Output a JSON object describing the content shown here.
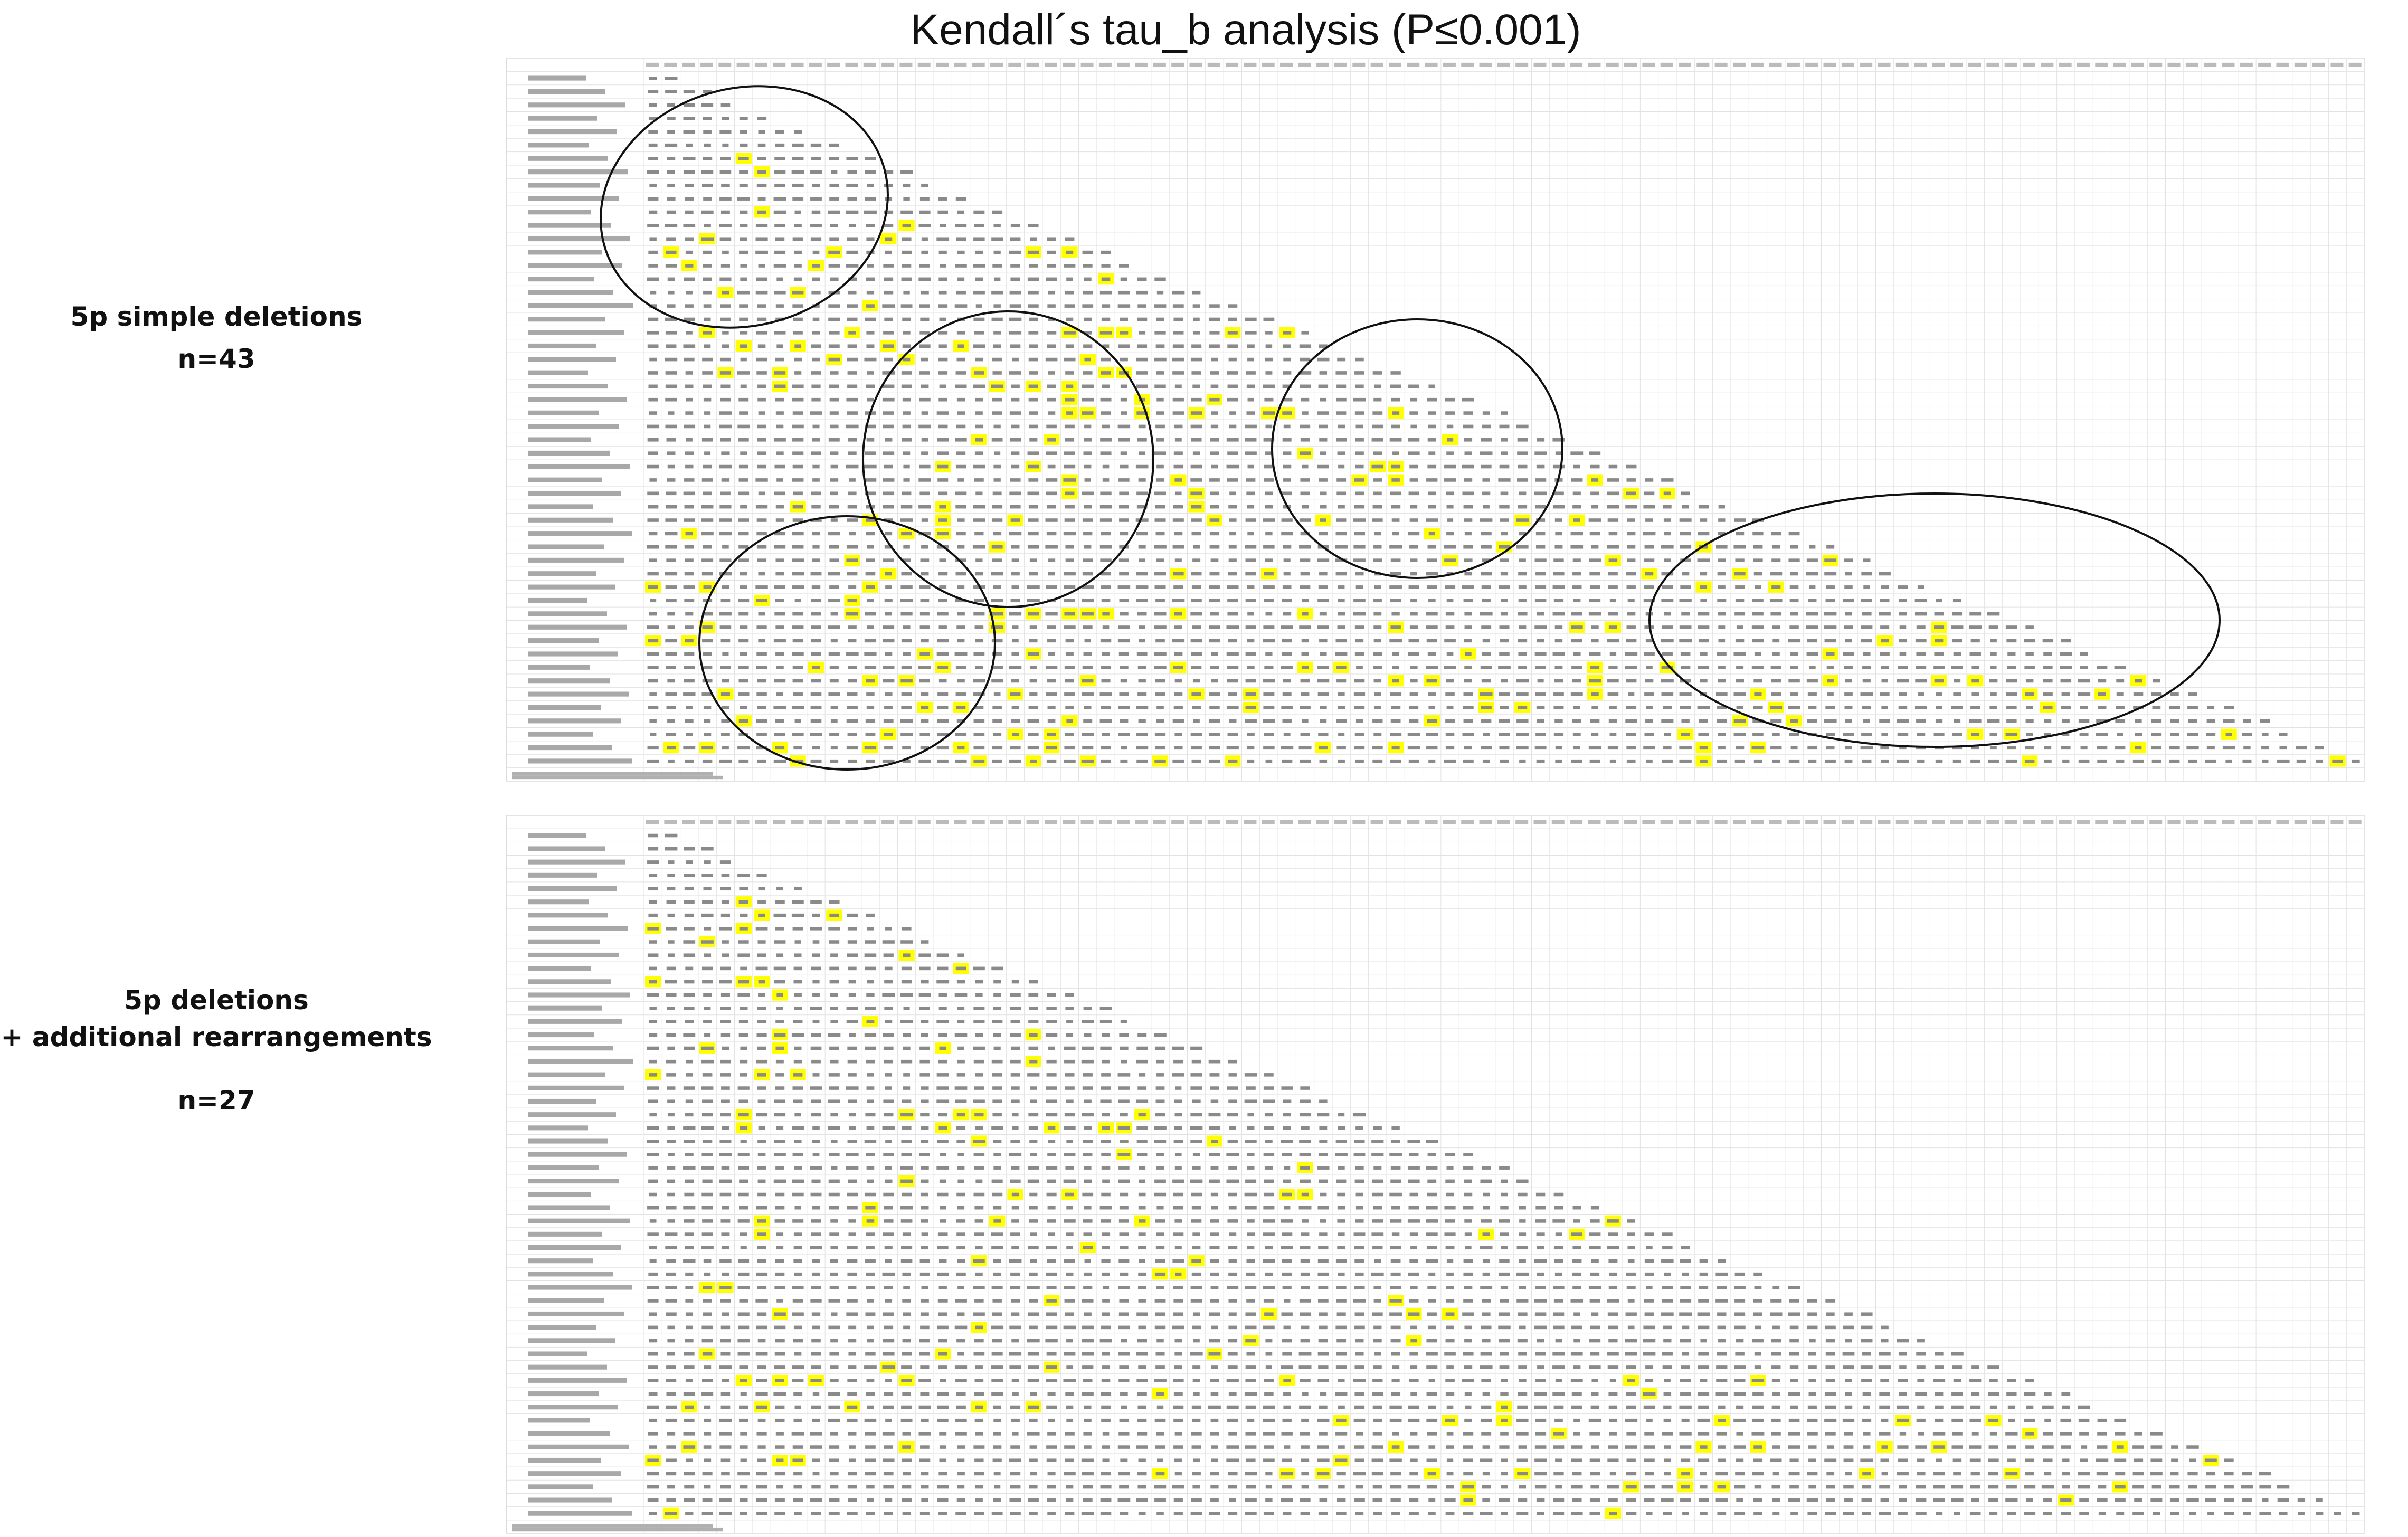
{
  "figure": {
    "title": "Kendall´s tau_b analysis (P≤0.001)"
  },
  "panels": [
    {
      "id": "top",
      "label_line1": "5p simple deletions",
      "label_line2": "",
      "label_n": "n=43",
      "rows": 52,
      "cols": 95,
      "highlight_color": "#ffff00",
      "grid_color": "#d0d0d0",
      "highlight_density": 0.075,
      "circled_regions": 5
    },
    {
      "id": "bottom",
      "label_line1": "5p deletions",
      "label_line2": "+ additional rearrangements",
      "label_n": "n=27",
      "rows": 52,
      "cols": 95,
      "highlight_color": "#ffff00",
      "grid_color": "#d0d0d0",
      "highlight_density": 0.04,
      "circled_regions": 0
    }
  ]
}
